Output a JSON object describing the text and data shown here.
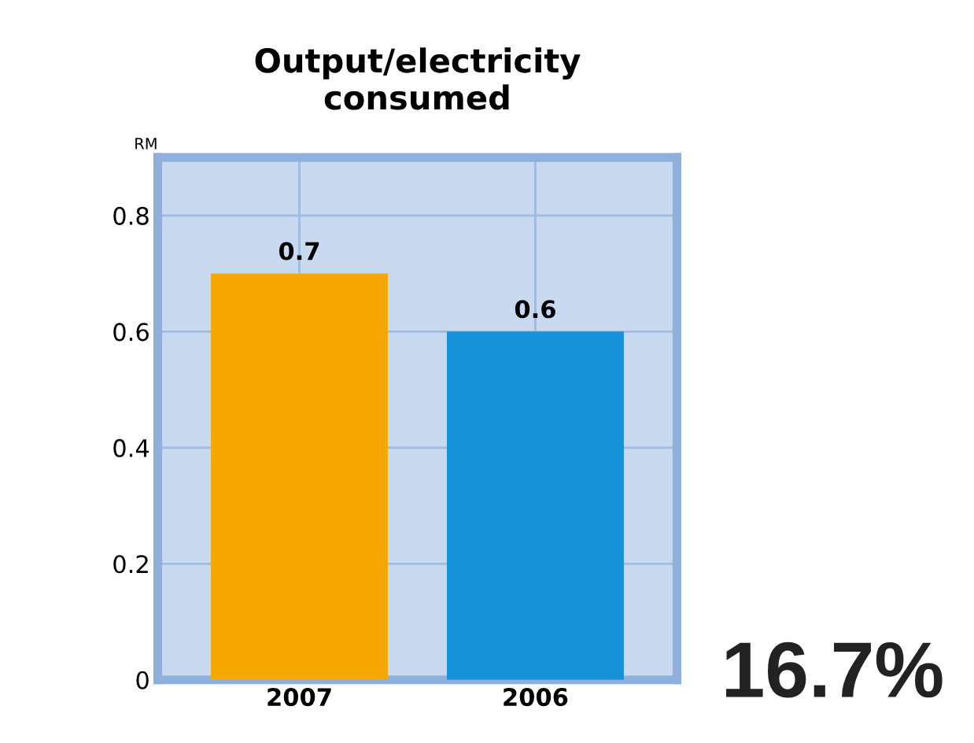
{
  "chart_data": {
    "type": "bar",
    "title": "Output/electricity\nconsumed",
    "ylabel": "RM",
    "categories": [
      "2007",
      "2006"
    ],
    "values": [
      0.7,
      0.6
    ],
    "colors": [
      "#f7a800",
      "#1591d8"
    ],
    "ylim": [
      0,
      0.9
    ],
    "yticks": [
      0,
      0.2,
      0.4,
      0.6,
      0.8
    ],
    "grid": true,
    "data_labels": true,
    "annotations": [
      "16.7%"
    ]
  }
}
